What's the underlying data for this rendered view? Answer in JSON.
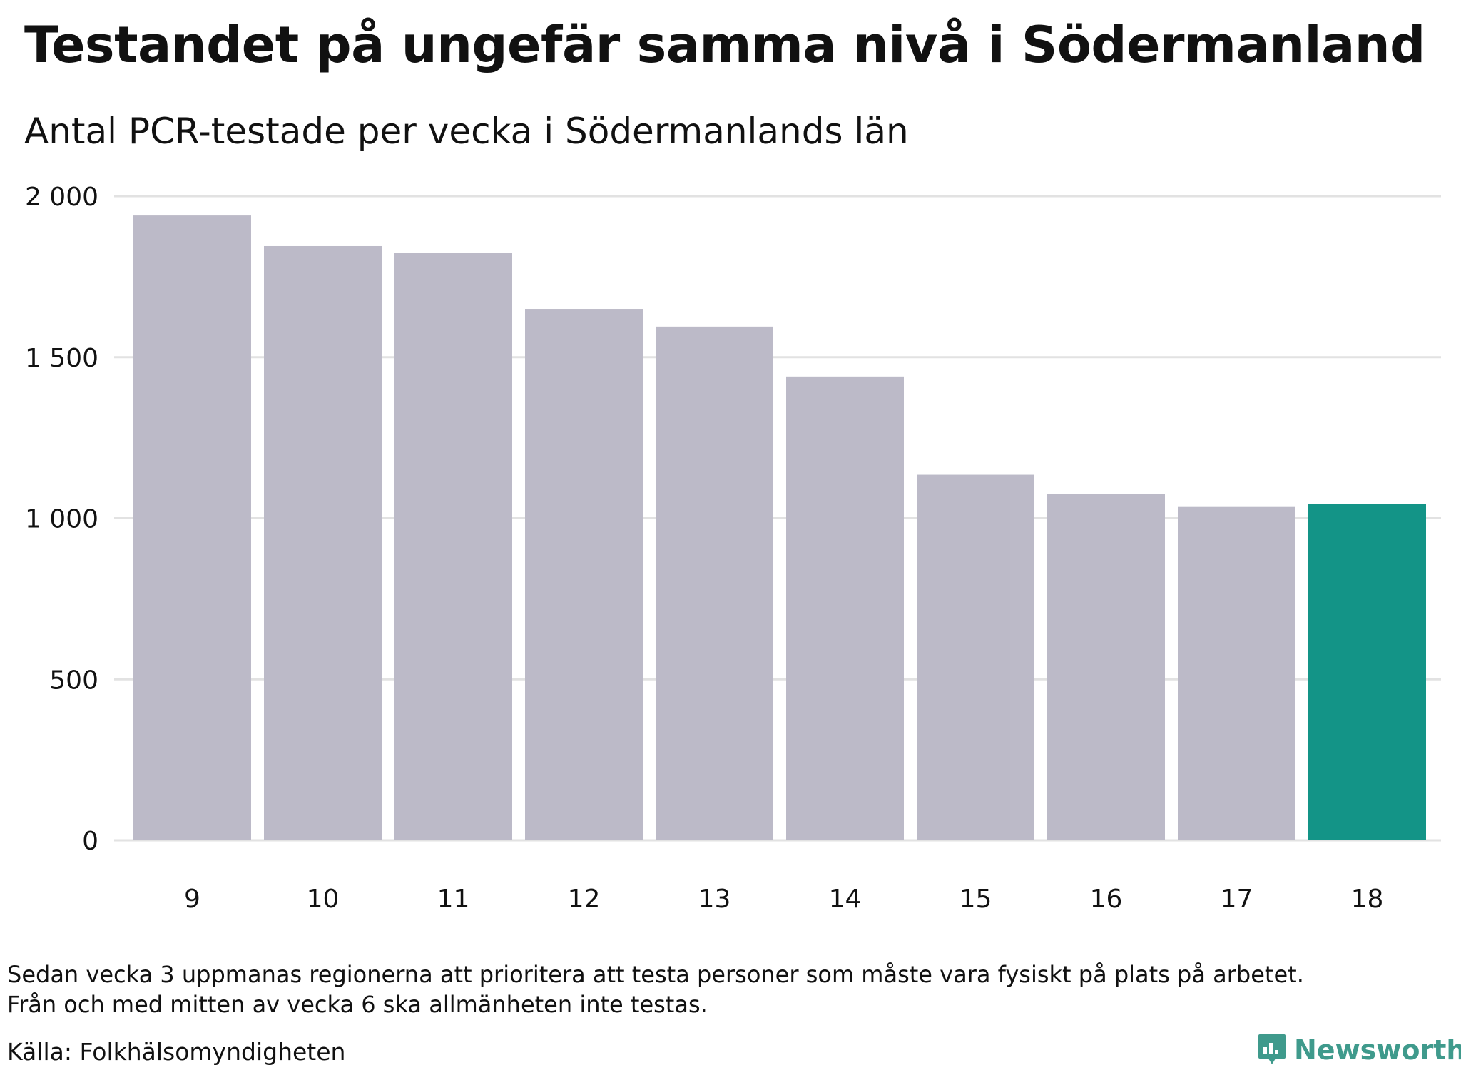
{
  "title": "Testandet på ungefär samma nivå i Södermanland",
  "subtitle": "Antal PCR-testade per vecka i Södermanlands län",
  "note_line1": "Sedan vecka 3 uppmanas regionerna att prioritera att testa personer som måste vara fysiskt på plats på arbetet.",
  "note_line2": "Från och med mitten av vecka 6 ska allmänheten inte testas.",
  "source": "Källa: Folkhälsomyndigheten",
  "brand": "Newsworthy",
  "colors": {
    "bar": "#bcbac8",
    "highlight": "#139487",
    "grid": "#e2e2e2",
    "brand": "#3f9a8c"
  },
  "chart_data": {
    "type": "bar",
    "title": "Testandet på ungefär samma nivå i Södermanland",
    "subtitle": "Antal PCR-testade per vecka i Södermanlands län",
    "xlabel": "",
    "ylabel": "",
    "categories": [
      "9",
      "10",
      "11",
      "12",
      "13",
      "14",
      "15",
      "16",
      "17",
      "18"
    ],
    "values": [
      1940,
      1845,
      1825,
      1650,
      1595,
      1440,
      1135,
      1075,
      1035,
      1045
    ],
    "highlight_index": 9,
    "ylim": [
      0,
      2000
    ],
    "yticks": [
      0,
      500,
      1000,
      1500,
      2000
    ],
    "ytick_labels": [
      "0",
      "500",
      "1 000",
      "1 500",
      "2 000"
    ],
    "grid": true
  }
}
